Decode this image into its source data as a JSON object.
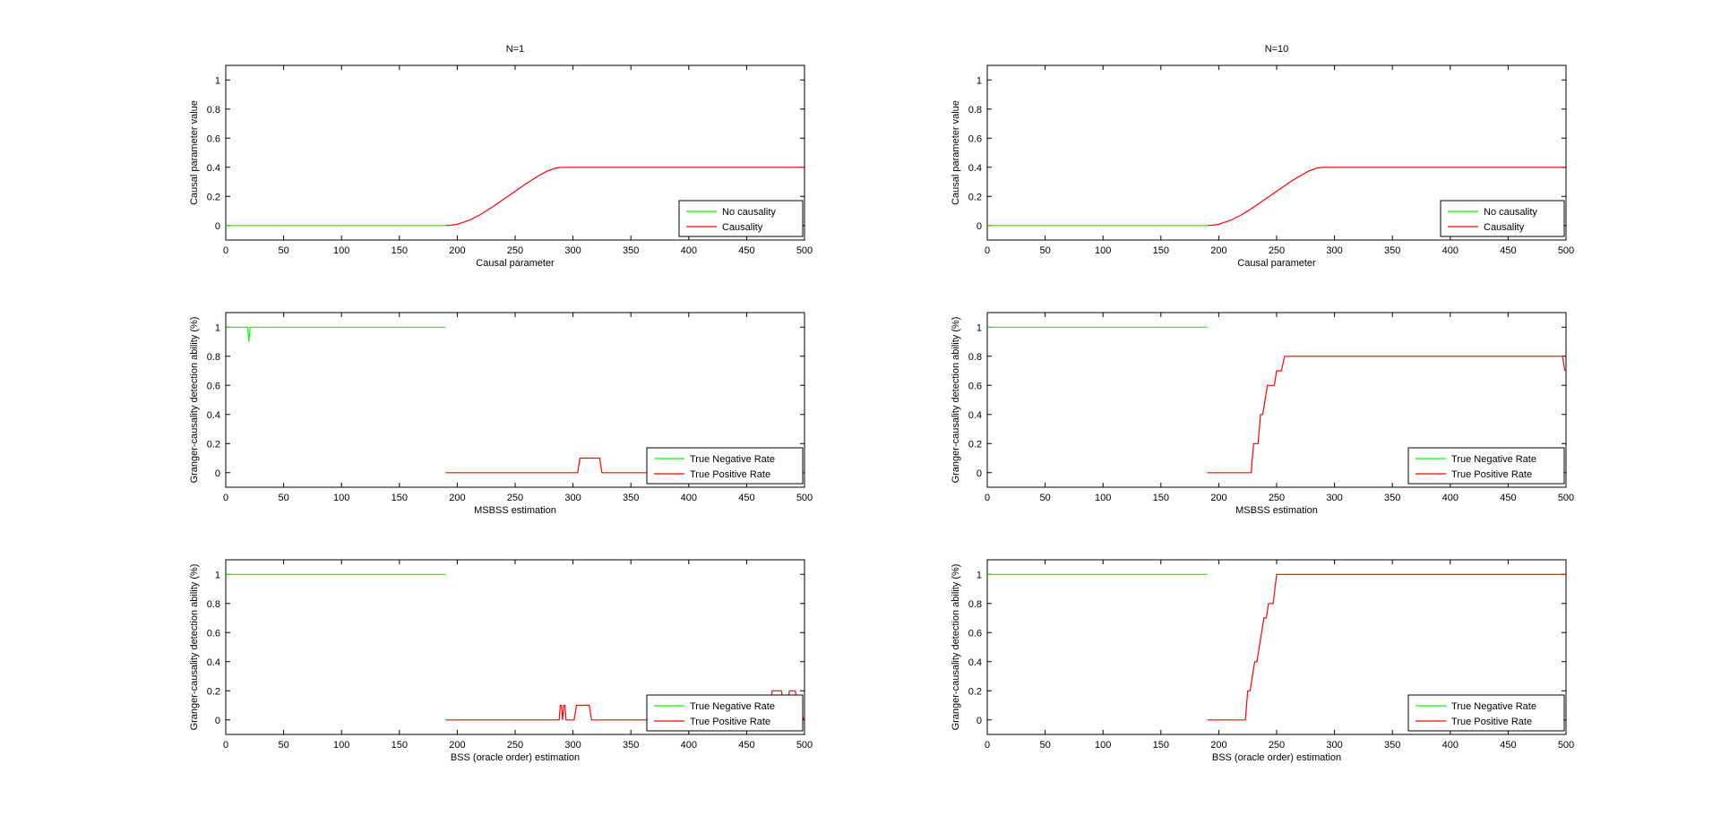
{
  "chart_data": [
    {
      "type": "line",
      "title": "N=1",
      "xlabel": "Causal parameter",
      "ylabel": "Causal parameter value",
      "xlim": [
        0,
        500
      ],
      "ylim": [
        -0.1,
        1.1
      ],
      "xticks": [
        0,
        50,
        100,
        150,
        200,
        250,
        300,
        350,
        400,
        450,
        500
      ],
      "yticks": [
        0,
        0.2,
        0.4,
        0.6,
        0.8,
        1
      ],
      "legend": "bottom-right",
      "series": [
        {
          "name": "No causality",
          "color": "#00ff00",
          "points": [
            [
              0,
              0
            ],
            [
              190,
              0
            ]
          ]
        },
        {
          "name": "Causality",
          "color": "#ff0000",
          "points": [
            [
              190,
              0
            ],
            [
              195,
              0.002
            ],
            [
              200,
              0.008
            ],
            [
              210,
              0.035
            ],
            [
              220,
              0.075
            ],
            [
              230,
              0.125
            ],
            [
              240,
              0.18
            ],
            [
              250,
              0.235
            ],
            [
              260,
              0.29
            ],
            [
              270,
              0.34
            ],
            [
              278,
              0.375
            ],
            [
              285,
              0.395
            ],
            [
              290,
              0.4
            ],
            [
              500,
              0.4
            ]
          ]
        }
      ]
    },
    {
      "type": "line",
      "title": "N=10",
      "xlabel": "Causal parameter",
      "ylabel": "Causal parameter value",
      "xlim": [
        0,
        500
      ],
      "ylim": [
        -0.1,
        1.1
      ],
      "xticks": [
        0,
        50,
        100,
        150,
        200,
        250,
        300,
        350,
        400,
        450,
        500
      ],
      "yticks": [
        0,
        0.2,
        0.4,
        0.6,
        0.8,
        1
      ],
      "legend": "bottom-right",
      "series": [
        {
          "name": "No causality",
          "color": "#00ff00",
          "points": [
            [
              0,
              0
            ],
            [
              190,
              0
            ]
          ]
        },
        {
          "name": "Causality",
          "color": "#ff0000",
          "points": [
            [
              190,
              0
            ],
            [
              195,
              0.002
            ],
            [
              200,
              0.008
            ],
            [
              210,
              0.035
            ],
            [
              220,
              0.075
            ],
            [
              230,
              0.125
            ],
            [
              240,
              0.18
            ],
            [
              250,
              0.235
            ],
            [
              260,
              0.29
            ],
            [
              270,
              0.34
            ],
            [
              278,
              0.375
            ],
            [
              285,
              0.395
            ],
            [
              290,
              0.4
            ],
            [
              500,
              0.4
            ]
          ]
        }
      ]
    },
    {
      "type": "line",
      "title": "",
      "xlabel": "MSBSS estimation",
      "ylabel": "Granger-causality detection ability (%)",
      "xlim": [
        0,
        500
      ],
      "ylim": [
        -0.1,
        1.1
      ],
      "xticks": [
        0,
        50,
        100,
        150,
        200,
        250,
        300,
        350,
        400,
        450,
        500
      ],
      "yticks": [
        0,
        0.2,
        0.4,
        0.6,
        0.8,
        1
      ],
      "legend": "bottom-right",
      "series": [
        {
          "name": "True Negative Rate",
          "color": "#00ff00",
          "points": [
            [
              0,
              1
            ],
            [
              19,
              1
            ],
            [
              20,
              0.9
            ],
            [
              21,
              1
            ],
            [
              190,
              1
            ]
          ]
        },
        {
          "name": "True Positive Rate",
          "color": "#ff0000",
          "points": [
            [
              190,
              0
            ],
            [
              304,
              0
            ],
            [
              306,
              0.1
            ],
            [
              323,
              0.1
            ],
            [
              325,
              0
            ],
            [
              500,
              0
            ]
          ]
        }
      ]
    },
    {
      "type": "line",
      "title": "",
      "xlabel": "MSBSS estimation",
      "ylabel": "Granger-causality detection ability (%)",
      "xlim": [
        0,
        500
      ],
      "ylim": [
        -0.1,
        1.1
      ],
      "xticks": [
        0,
        50,
        100,
        150,
        200,
        250,
        300,
        350,
        400,
        450,
        500
      ],
      "yticks": [
        0,
        0.2,
        0.4,
        0.6,
        0.8,
        1
      ],
      "legend": "bottom-right",
      "series": [
        {
          "name": "True Negative Rate",
          "color": "#00ff00",
          "points": [
            [
              0,
              1
            ],
            [
              190,
              1
            ]
          ]
        },
        {
          "name": "True Positive Rate",
          "color": "#ff0000",
          "points": [
            [
              190,
              0
            ],
            [
              228,
              0
            ],
            [
              230,
              0.2
            ],
            [
              234,
              0.2
            ],
            [
              236,
              0.4
            ],
            [
              238,
              0.4
            ],
            [
              240,
              0.5
            ],
            [
              242,
              0.6
            ],
            [
              248,
              0.6
            ],
            [
              250,
              0.7
            ],
            [
              254,
              0.7
            ],
            [
              257,
              0.8
            ],
            [
              497,
              0.8
            ],
            [
              499,
              0.7
            ]
          ]
        }
      ]
    },
    {
      "type": "line",
      "title": "",
      "xlabel": "BSS (oracle order) estimation",
      "ylabel": "Granger-causality detection ability (%)",
      "xlim": [
        0,
        500
      ],
      "ylim": [
        -0.1,
        1.1
      ],
      "xticks": [
        0,
        50,
        100,
        150,
        200,
        250,
        300,
        350,
        400,
        450,
        500
      ],
      "yticks": [
        0,
        0.2,
        0.4,
        0.6,
        0.8,
        1
      ],
      "legend": "bottom-right",
      "series": [
        {
          "name": "True Negative Rate",
          "color": "#00ff00",
          "points": [
            [
              0,
              1
            ],
            [
              190,
              1
            ]
          ]
        },
        {
          "name": "True Positive Rate",
          "color": "#ff0000",
          "points": [
            [
              190,
              0
            ],
            [
              288,
              0
            ],
            [
              289,
              0.1
            ],
            [
              290,
              0.1
            ],
            [
              291,
              0
            ],
            [
              292,
              0.1
            ],
            [
              293,
              0.1
            ],
            [
              294,
              0
            ],
            [
              301,
              0
            ],
            [
              303,
              0.1
            ],
            [
              314,
              0.1
            ],
            [
              316,
              0
            ],
            [
              470,
              0
            ],
            [
              472,
              0.2
            ],
            [
              480,
              0.2
            ],
            [
              482,
              0.1
            ],
            [
              485,
              0.1
            ],
            [
              487,
              0.2
            ],
            [
              492,
              0.2
            ],
            [
              494,
              0.1
            ],
            [
              497,
              0.1
            ],
            [
              499,
              0
            ]
          ]
        }
      ]
    },
    {
      "type": "line",
      "title": "",
      "xlabel": "BSS (oracle order) estimation",
      "ylabel": "Granger-causality detection ability (%)",
      "xlim": [
        0,
        500
      ],
      "ylim": [
        -0.1,
        1.1
      ],
      "xticks": [
        0,
        50,
        100,
        150,
        200,
        250,
        300,
        350,
        400,
        450,
        500
      ],
      "yticks": [
        0,
        0.2,
        0.4,
        0.6,
        0.8,
        1
      ],
      "legend": "bottom-right",
      "series": [
        {
          "name": "True Negative Rate",
          "color": "#00ff00",
          "points": [
            [
              0,
              1
            ],
            [
              190,
              1
            ]
          ]
        },
        {
          "name": "True Positive Rate",
          "color": "#ff0000",
          "points": [
            [
              190,
              0
            ],
            [
              223,
              0
            ],
            [
              225,
              0.2
            ],
            [
              227,
              0.2
            ],
            [
              229,
              0.3
            ],
            [
              231,
              0.4
            ],
            [
              233,
              0.4
            ],
            [
              235,
              0.5
            ],
            [
              237,
              0.6
            ],
            [
              239,
              0.7
            ],
            [
              241,
              0.7
            ],
            [
              243,
              0.8
            ],
            [
              247,
              0.8
            ],
            [
              250,
              1
            ],
            [
              500,
              1
            ]
          ]
        }
      ]
    }
  ]
}
